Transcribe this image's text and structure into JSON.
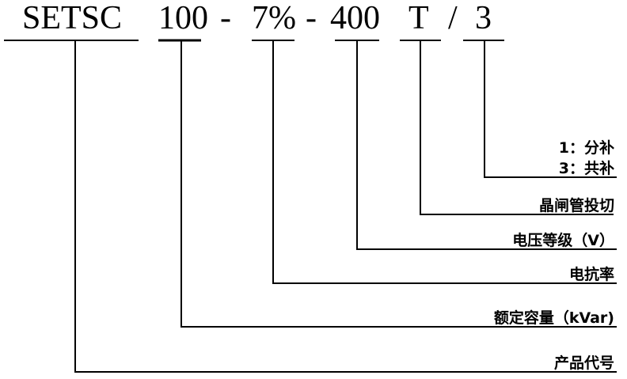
{
  "code_parts": [
    "SETSC",
    "100",
    "-",
    "7%",
    "-",
    "400",
    "T",
    "/",
    "3"
  ],
  "labels": {
    "product_code": "产品代号",
    "rated_capacity": "额定容量（kVar)",
    "reactance_rate": "电抗率",
    "voltage_level": "电压等级（V）",
    "thyristor_switching": "晶闸管投切",
    "common_comp": "3：共补",
    "split_comp": "1：分补"
  }
}
